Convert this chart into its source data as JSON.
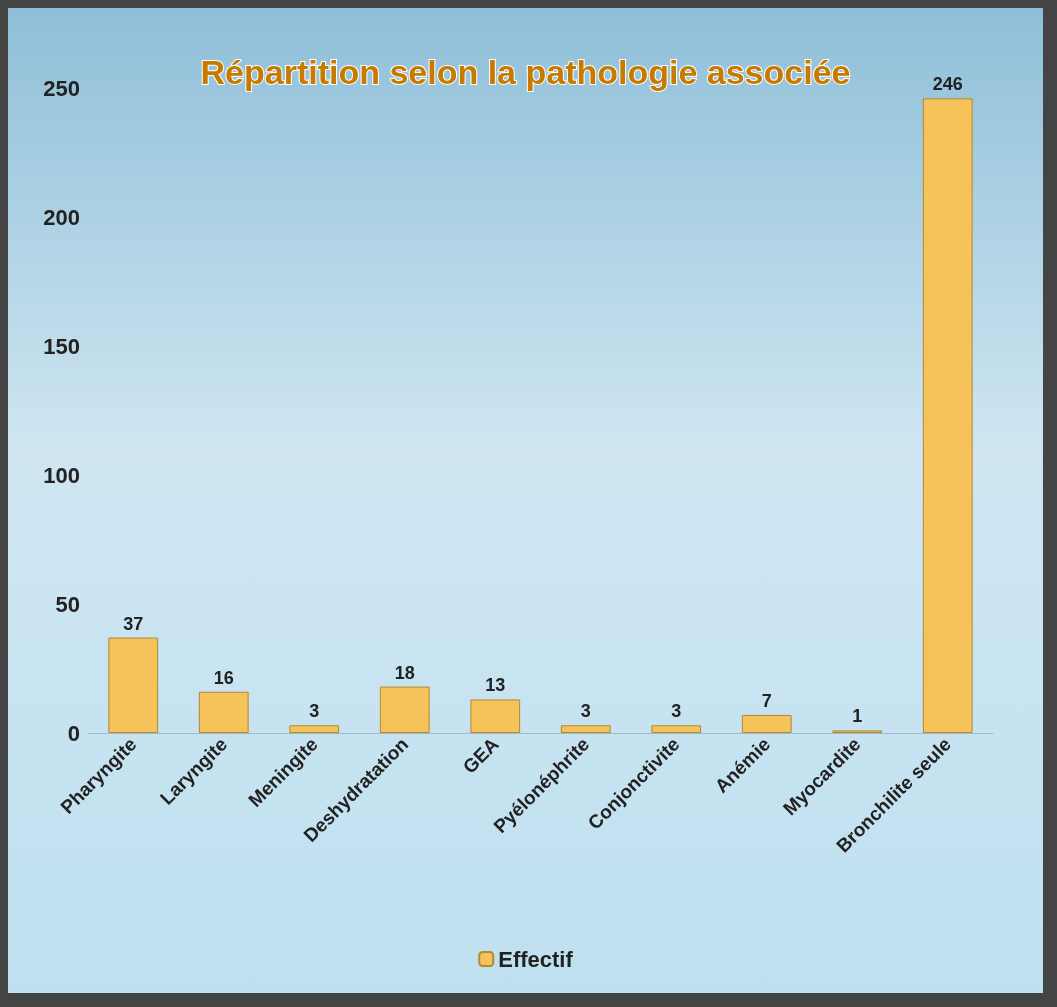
{
  "chart_data": {
    "type": "bar",
    "title": "Répartition selon la pathologie associée",
    "categories": [
      "Pharyngite",
      "Laryngite",
      "Meningite",
      "Deshydratation",
      "GEA",
      "Pyélonéphrite",
      "Conjonctivite",
      "Anémie",
      "Myocardite",
      "Bronchilite seule"
    ],
    "series": [
      {
        "name": "Effectif",
        "color": "#f5c35a",
        "values": [
          37,
          16,
          3,
          18,
          13,
          3,
          3,
          7,
          1,
          246
        ]
      }
    ],
    "ylim": [
      0,
      250
    ],
    "yticks": [
      0,
      50,
      100,
      150,
      200,
      250
    ],
    "grid": false,
    "legend": "bottom",
    "data_labels": true
  }
}
